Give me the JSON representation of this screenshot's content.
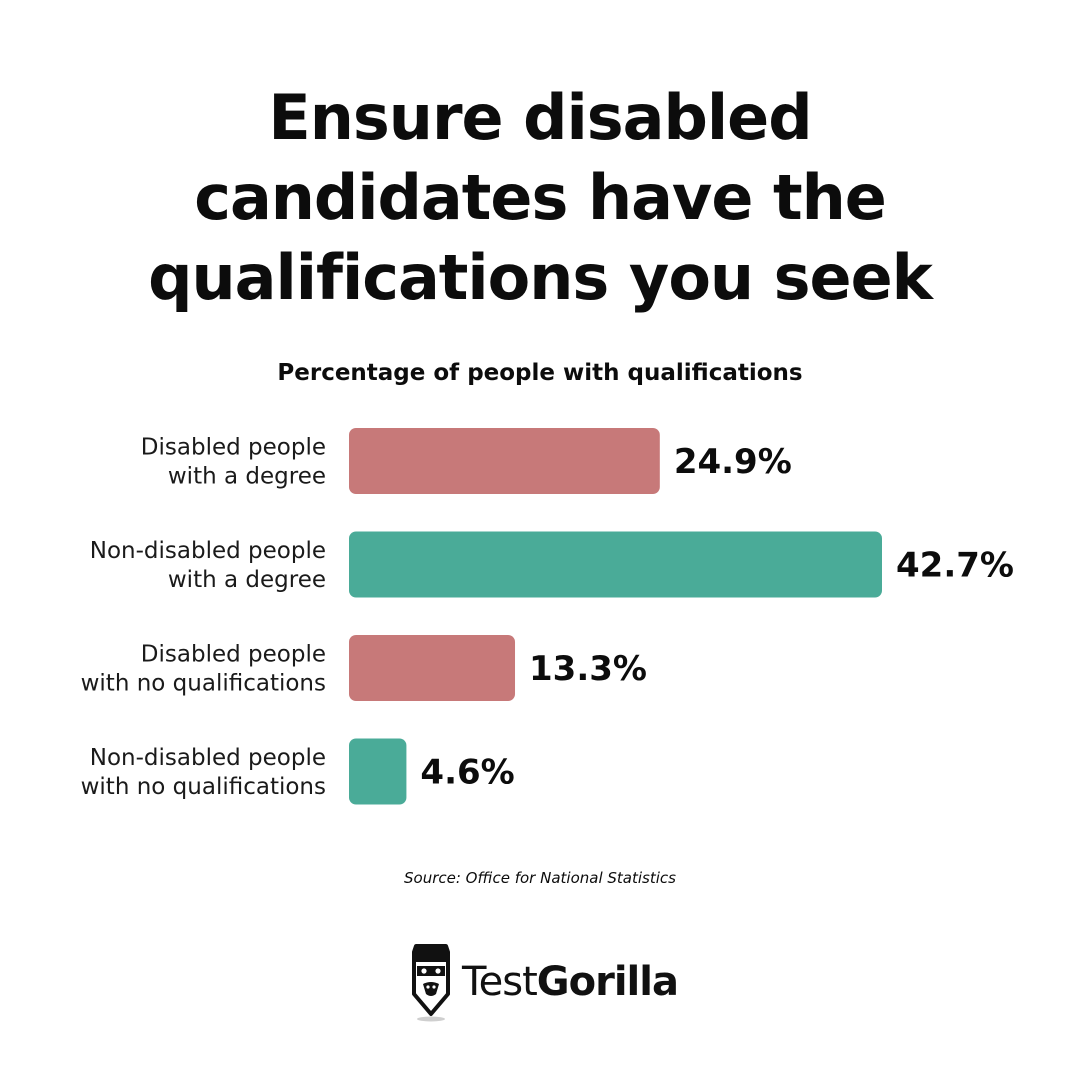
{
  "headline": {
    "line1": "Ensure disabled",
    "line2": "candidates have the",
    "line3": "qualifications you seek"
  },
  "chart_data": {
    "type": "bar",
    "orientation": "horizontal",
    "title": "Percentage of people with qualifications",
    "categories": [
      [
        "Disabled people",
        "with a degree"
      ],
      [
        "Non-disabled people",
        "with a degree"
      ],
      [
        "Disabled people",
        "with no qualifications"
      ],
      [
        "Non-disabled people",
        "with no qualifications"
      ]
    ],
    "values": [
      24.9,
      42.7,
      13.3,
      4.6
    ],
    "value_labels": [
      "24.9%",
      "42.7%",
      "13.3%",
      "4.6%"
    ],
    "bar_colors": [
      "#c77979",
      "#4aab98",
      "#c77979",
      "#4aab98"
    ],
    "xlim": [
      0,
      42.7
    ],
    "grid": false,
    "xlabel": "",
    "ylabel": ""
  },
  "source": "Source: Office for National Statistics",
  "logo": {
    "name_regular": "Test",
    "name_bold": "Gorilla",
    "icon": "gorilla-head-icon"
  }
}
